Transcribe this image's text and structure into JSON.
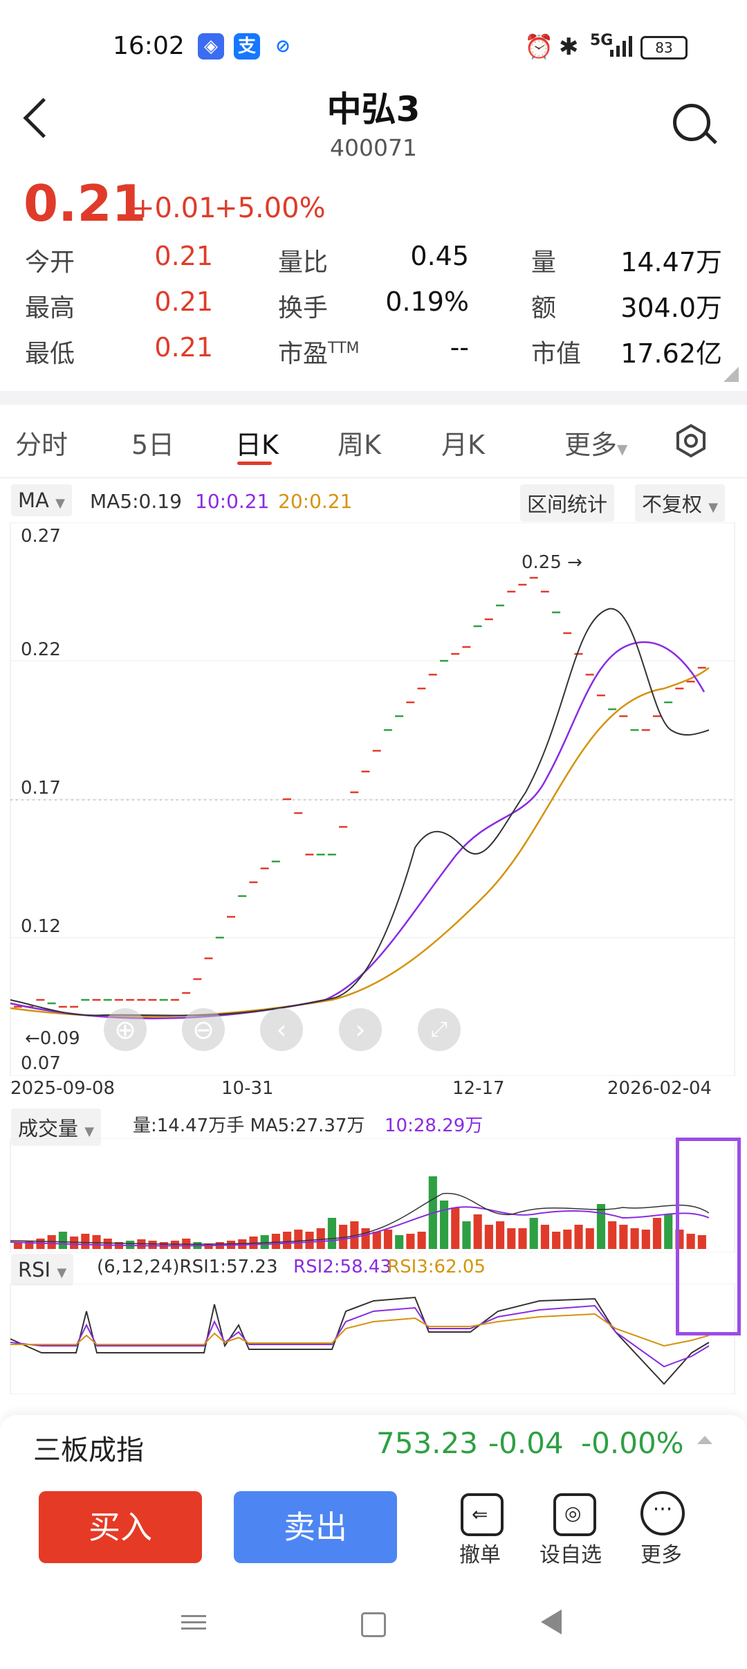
{
  "status": {
    "time": "16:02",
    "battery": "83",
    "network": "5G"
  },
  "header": {
    "title": "中弘3",
    "code": "400071"
  },
  "quote": {
    "price": "0.21",
    "change": "+0.01",
    "change_pct": "+5.00%",
    "rows": [
      [
        {
          "label": "今开",
          "value": "0.21"
        },
        {
          "label": "量比",
          "value": "0.45"
        },
        {
          "label": "量",
          "value": "14.47万"
        }
      ],
      [
        {
          "label": "最高",
          "value": "0.21"
        },
        {
          "label": "换手",
          "value": "0.19%"
        },
        {
          "label": "额",
          "value": "304.0万"
        }
      ],
      [
        {
          "label": "最低",
          "value": "0.21"
        },
        {
          "label": "市盈",
          "sup": "TTM",
          "value": "--"
        },
        {
          "label": "市值",
          "value": "17.62亿"
        }
      ]
    ]
  },
  "tabs": [
    "分时",
    "5日",
    "日K",
    "周K",
    "月K",
    "更多"
  ],
  "active_tab": "日K",
  "kline": {
    "indicator": "MA",
    "ma5": "MA5:0.19",
    "ma10": "10:0.21",
    "ma20": "20:0.21",
    "interval_btn": "区间统计",
    "adjust_btn": "不复权",
    "y_labels": [
      "0.27",
      "0.22",
      "0.17",
      "0.12",
      "0.07"
    ],
    "x_labels": [
      "2025-09-08",
      "10-31",
      "12-17",
      "2026-02-04"
    ],
    "max_label": "0.25",
    "min_label": "0.09",
    "colors": {
      "up": "#e03b2a",
      "down": "#2ea043",
      "ma5": "#333333",
      "ma10": "#8a2be2",
      "ma20": "#d4930a"
    }
  },
  "volume": {
    "indicator": "成交量",
    "legend": "量:14.47万手 MA5:27.37万",
    "ma10": "10:28.29万"
  },
  "rsi": {
    "indicator": "RSI",
    "legend": "(6,12,24)RSI1:57.23",
    "rsi2": "RSI2:58.43",
    "rsi3": "RSI3:62.05"
  },
  "index_bar": {
    "name": "三板成指",
    "value": "753.23",
    "change": "-0.04",
    "change_pct": "-0.00%"
  },
  "actions": {
    "buy": "买入",
    "sell": "卖出",
    "cancel": "撤单",
    "watch": "设自选",
    "more": "更多"
  }
}
